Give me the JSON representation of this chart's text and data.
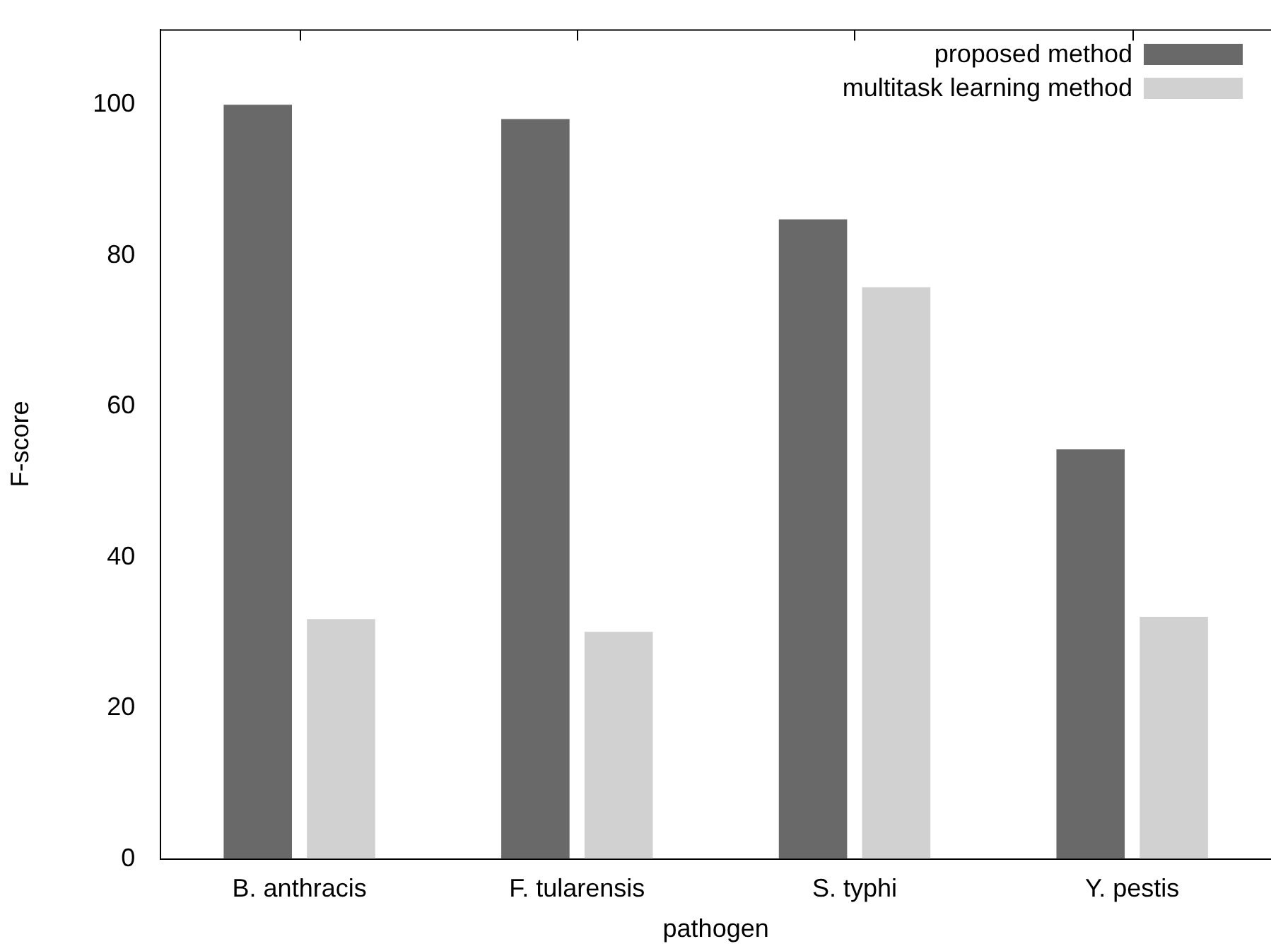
{
  "chart_data": {
    "type": "bar",
    "xlabel": "pathogen",
    "ylabel": "F-score",
    "categories": [
      "B. anthracis",
      "F. tularensis",
      "S. typhi",
      "Y. pestis"
    ],
    "series": [
      {
        "name": "proposed method",
        "color": "#696969",
        "values": [
          100,
          98.1,
          84.8,
          54.3
        ]
      },
      {
        "name": "multitask learning method",
        "color": "#d1d1d1",
        "values": [
          31.8,
          30.1,
          75.8,
          32.1
        ]
      }
    ],
    "ylim": [
      0,
      110
    ],
    "yticks": [
      0,
      20,
      40,
      60,
      80,
      100
    ],
    "legend": "top right"
  }
}
